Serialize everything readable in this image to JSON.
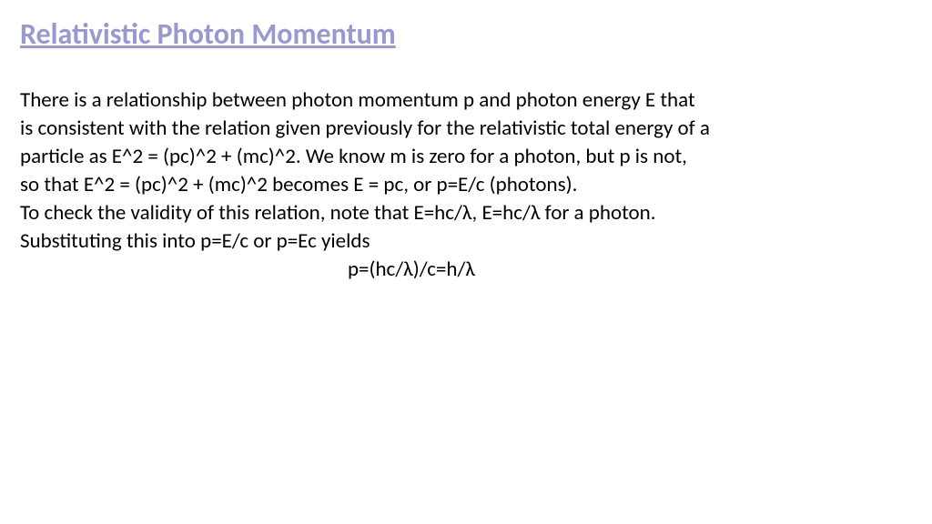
{
  "title": "Relativistic Photon Momentum",
  "paragraph": {
    "line1": "There is a relationship between photon momentum p and photon energy E that",
    "line2": "is consistent with the relation given previously for the relativistic total energy of a",
    "line3": "particle as E^2 = (pc)^2 + (mc)^2. We know m is zero for a photon, but p is not,",
    "line4": "so that E^2 = (pc)^2 + (mc)^2 becomes E = pc, or p=E/c (photons).",
    "line5": "To check the validity of this relation, note that E=hc/λ, E=hc/λ for a photon.",
    "line6": "Substituting this into p=E/c or p=Ec yields",
    "equation": "p=(hc/λ)/c=h/λ"
  },
  "styling": {
    "title_color": "#9999cc",
    "title_fontsize": 32,
    "body_color": "#000000",
    "body_fontsize": 23,
    "background_color": "#ffffff",
    "font_family": "Calibri"
  }
}
